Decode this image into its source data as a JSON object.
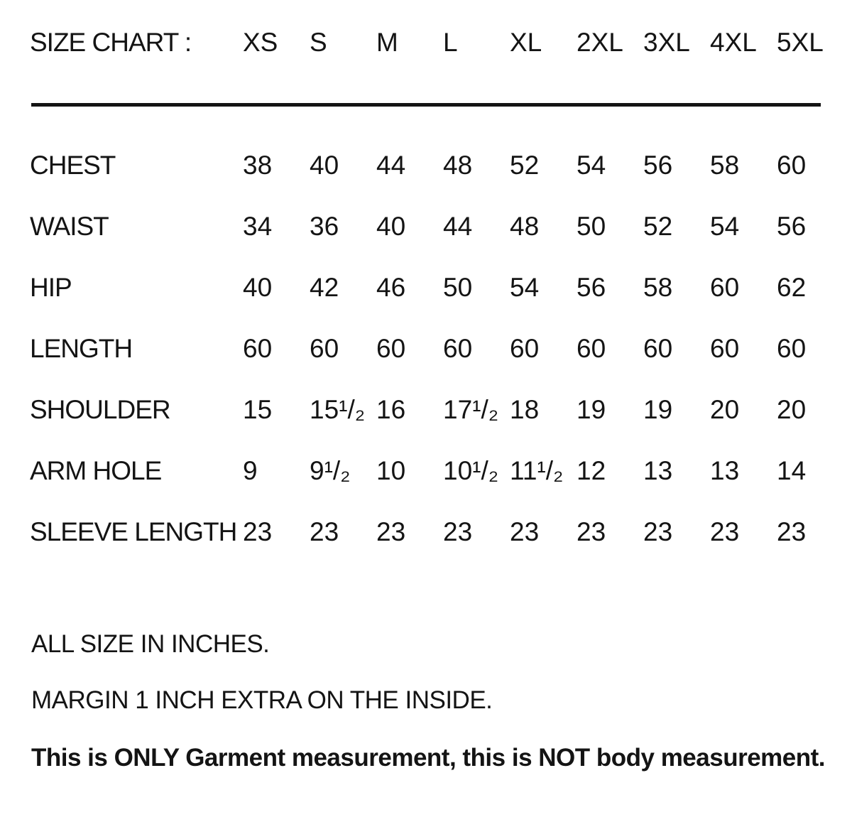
{
  "chart_data": {
    "type": "table",
    "title": "SIZE CHART :",
    "unit": "inches",
    "columns": [
      "XS",
      "S",
      "M",
      "L",
      "XL",
      "2XL",
      "3XL",
      "4XL",
      "5XL"
    ],
    "rows": [
      {
        "label": "CHEST",
        "values": [
          "38",
          "40",
          "44",
          "48",
          "52",
          "54",
          "56",
          "58",
          "60"
        ]
      },
      {
        "label": "WAIST",
        "values": [
          "34",
          "36",
          "40",
          "44",
          "48",
          "50",
          "52",
          "54",
          "56"
        ]
      },
      {
        "label": "HIP",
        "values": [
          "40",
          "42",
          "46",
          "50",
          "54",
          "56",
          "58",
          "60",
          "62"
        ]
      },
      {
        "label": "LENGTH",
        "values": [
          "60",
          "60",
          "60",
          "60",
          "60",
          "60",
          "60",
          "60",
          "60"
        ]
      },
      {
        "label": "SHOULDER",
        "values": [
          "15",
          "15¹/₂",
          "16",
          "17¹/₂",
          "18",
          "19",
          "19",
          "20",
          "20"
        ]
      },
      {
        "label": "ARM HOLE",
        "values": [
          "9",
          "9¹/₂",
          "10",
          "10¹/₂",
          "11¹/₂",
          "12",
          "13",
          "13",
          "14"
        ]
      },
      {
        "label": "SLEEVE LENGTH",
        "values": [
          "23",
          "23",
          "23",
          "23",
          "23",
          "23",
          "23",
          "23",
          "23"
        ]
      }
    ],
    "notes": [
      "ALL SIZE IN INCHES.",
      "MARGIN 1 INCH EXTRA ON THE INSIDE.",
      "This is ONLY Garment measurement, this is NOT body measurement."
    ]
  },
  "colors": {
    "text": "#141414",
    "background": "#ffffff",
    "rule": "#141414"
  }
}
